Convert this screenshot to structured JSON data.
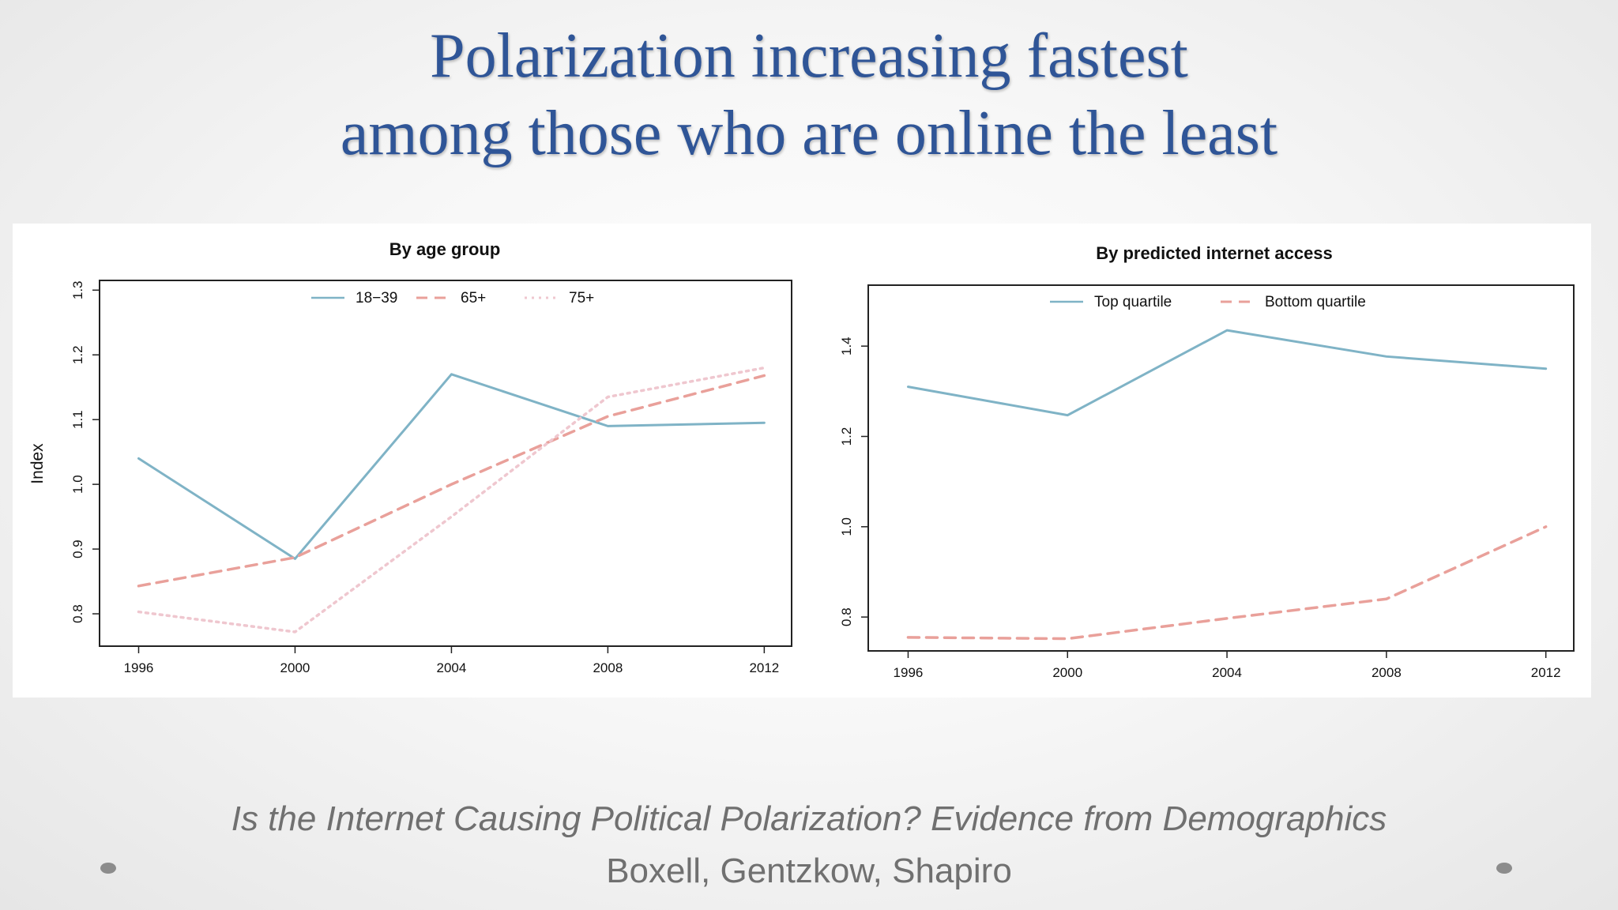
{
  "slide": {
    "title_line1": "Polarization increasing fastest",
    "title_line2": "among those who are online the least",
    "citation": "Is the Internet Causing Political Polarization? Evidence from Demographics",
    "authors": "Boxell, Gentzkow, Shapiro"
  },
  "colors": {
    "title": "#2f5597",
    "line_solid": "#7fb3c6",
    "line_dashed": "#e9a09a",
    "line_dotted": "#efc7cf",
    "footer_text": "#707070"
  },
  "chart_data": [
    {
      "type": "line",
      "title": "By age group",
      "ylabel": "Index",
      "xlabel": "",
      "x": [
        1996,
        2000,
        2004,
        2008,
        2012
      ],
      "xticks": [
        "1996",
        "2000",
        "2004",
        "2008",
        "2012"
      ],
      "xlim": [
        1995,
        2012.7
      ],
      "ylim": [
        0.75,
        1.315
      ],
      "yticks": [
        "0.8",
        "0.9",
        "1.0",
        "1.1",
        "1.2",
        "1.3"
      ],
      "grid": false,
      "legend": "top-center",
      "series": [
        {
          "name": "18−39",
          "values": [
            1.04,
            0.885,
            1.17,
            1.09,
            1.095
          ],
          "style": "solid"
        },
        {
          "name": "65+",
          "values": [
            0.843,
            0.887,
            1.0,
            1.105,
            1.168
          ],
          "style": "dashed"
        },
        {
          "name": "75+",
          "values": [
            0.803,
            0.772,
            0.95,
            1.135,
            1.18
          ],
          "style": "dotted"
        }
      ]
    },
    {
      "type": "line",
      "title": "By predicted internet access",
      "ylabel": "",
      "xlabel": "",
      "x": [
        1996,
        2000,
        2004,
        2008,
        2012
      ],
      "xticks": [
        "1996",
        "2000",
        "2004",
        "2008",
        "2012"
      ],
      "xlim": [
        1995,
        2012.7
      ],
      "ylim": [
        0.725,
        1.535
      ],
      "yticks": [
        "0.8",
        "1.0",
        "1.2",
        "1.4"
      ],
      "grid": false,
      "legend": "top-center",
      "series": [
        {
          "name": "Top quartile",
          "values": [
            1.31,
            1.247,
            1.435,
            1.377,
            1.35
          ],
          "style": "solid"
        },
        {
          "name": "Bottom quartile",
          "values": [
            0.755,
            0.752,
            0.797,
            0.84,
            1.0
          ],
          "style": "dashed"
        }
      ]
    }
  ]
}
